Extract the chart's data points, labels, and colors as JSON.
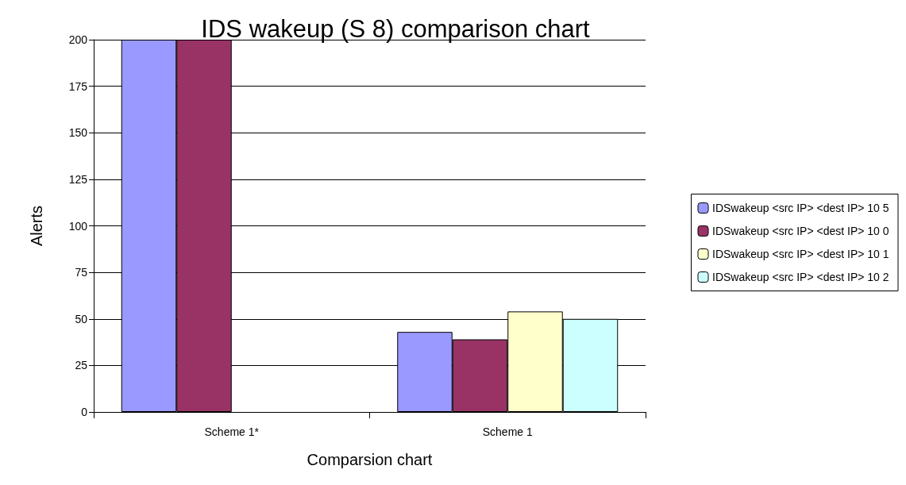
{
  "chart_data": {
    "type": "bar",
    "title": "IDS wakeup (S 8) comparison chart",
    "xlabel": "Comparsion chart",
    "ylabel": "Alerts",
    "categories": [
      "Scheme 1*",
      "Scheme 1"
    ],
    "series": [
      {
        "name": "IDSwakeup <src IP> <dest IP> 10 5",
        "color": "#9999ff",
        "values": [
          200,
          43
        ]
      },
      {
        "name": "IDSwakeup <src IP> <dest IP> 10 0",
        "color": "#993366",
        "values": [
          200,
          39
        ]
      },
      {
        "name": "IDSwakeup <src IP> <dest IP> 10 1",
        "color": "#ffffcc",
        "values": [
          null,
          54
        ]
      },
      {
        "name": "IDSwakeup <src IP> <dest IP> 10 2",
        "color": "#ccffff",
        "values": [
          null,
          50
        ]
      }
    ],
    "ylim": [
      0,
      200
    ],
    "yticks": [
      0,
      25,
      50,
      75,
      100,
      125,
      150,
      175,
      200
    ],
    "grid": "y",
    "legend": "right"
  }
}
